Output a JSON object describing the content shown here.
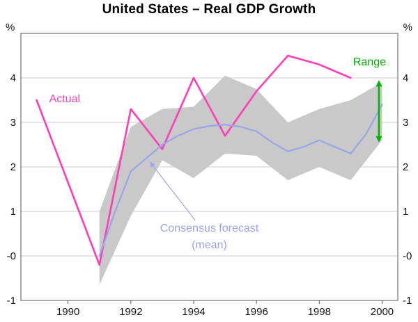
{
  "chart_data": {
    "type": "line",
    "title": "United States – Real GDP Growth",
    "unit_left": "%",
    "unit_right": "%",
    "xlim": [
      1988.5,
      2000.5
    ],
    "ylim": [
      -1,
      5
    ],
    "grid": "horizontal",
    "gridline_values": [
      0,
      1,
      2,
      3,
      4
    ],
    "colors": {
      "actual": "#ff3db8",
      "consensus": "#9aa4e8",
      "band": "#c9c9c9",
      "range_green": "#00b300",
      "grid": "#cccccc",
      "axis": "#555555",
      "tick_text": "#111111"
    },
    "y_ticks": [
      {
        "value": 4,
        "label": "4"
      },
      {
        "value": 3,
        "label": "3"
      },
      {
        "value": 2,
        "label": "2"
      },
      {
        "value": 1,
        "label": "1"
      },
      {
        "value": 0,
        "label": "-0"
      },
      {
        "value": -1,
        "label": "-1"
      }
    ],
    "x_ticks": [
      {
        "value": 1990,
        "label": "1990"
      },
      {
        "value": 1992,
        "label": "1992"
      },
      {
        "value": 1994,
        "label": "1994"
      },
      {
        "value": 1996,
        "label": "1996"
      },
      {
        "value": 1998,
        "label": "1998"
      },
      {
        "value": 2000,
        "label": "2000"
      }
    ],
    "band": {
      "name": "Consensus forecast range",
      "color": "#c9c9c9",
      "x": [
        1991,
        1992,
        1993,
        1994,
        1995,
        1996,
        1997,
        1998,
        1999,
        2000
      ],
      "top": [
        1.0,
        2.9,
        3.3,
        3.35,
        4.05,
        3.75,
        3.0,
        3.3,
        3.5,
        3.9
      ],
      "bottom": [
        -0.65,
        0.9,
        2.15,
        1.75,
        2.3,
        2.25,
        1.7,
        2.0,
        1.7,
        2.6
      ]
    },
    "series": [
      {
        "name": "Actual",
        "color": "#ff3db8",
        "width": 2.6,
        "x": [
          1989,
          1990,
          1991,
          1992,
          1993,
          1994,
          1995,
          1996,
          1997,
          1998,
          1999
        ],
        "y": [
          3.5,
          1.65,
          -0.2,
          3.3,
          2.4,
          4.0,
          2.7,
          3.7,
          4.5,
          4.3,
          4.0
        ]
      },
      {
        "name": "Consensus forecast (mean)",
        "color": "#9aa4e8",
        "width": 2.2,
        "x": [
          1991,
          1991.5,
          1992,
          1992.5,
          1993,
          1993.5,
          1994,
          1994.5,
          1995,
          1995.5,
          1996,
          1996.5,
          1997,
          1997.5,
          1998,
          1998.5,
          1999,
          1999.5,
          2000
        ],
        "y": [
          0.0,
          1.0,
          1.9,
          2.2,
          2.5,
          2.7,
          2.85,
          2.92,
          2.95,
          2.9,
          2.8,
          2.55,
          2.35,
          2.45,
          2.6,
          2.45,
          2.3,
          2.75,
          3.4
        ]
      }
    ],
    "annotations": [
      {
        "id": "actual-label",
        "text": "Actual",
        "x": 1989.4,
        "y": 3.45,
        "color": "#ff3db8",
        "anchor": "start",
        "size": 16
      },
      {
        "id": "consensus-label-line1",
        "text": "Consensus forecast",
        "x": 1994.5,
        "y": 0.55,
        "color": "#9aa4e8",
        "anchor": "middle",
        "size": 16
      },
      {
        "id": "consensus-label-line2",
        "text": "(mean)",
        "x": 1994.5,
        "y": 0.17,
        "color": "#9aa4e8",
        "anchor": "middle",
        "size": 16
      },
      {
        "id": "range-label",
        "text": "Range",
        "x": 1999.6,
        "y": 4.28,
        "color": "#00b300",
        "anchor": "middle",
        "size": 16
      }
    ],
    "callout": {
      "from_x": 1994.05,
      "from_y": 0.8,
      "to_x": 1992.6,
      "to_y": 2.12,
      "color": "#9aa4e8"
    },
    "range_arrow": {
      "x": 1999.9,
      "y1": 2.55,
      "y2": 3.95,
      "color": "#00b300",
      "width": 2.5
    }
  }
}
